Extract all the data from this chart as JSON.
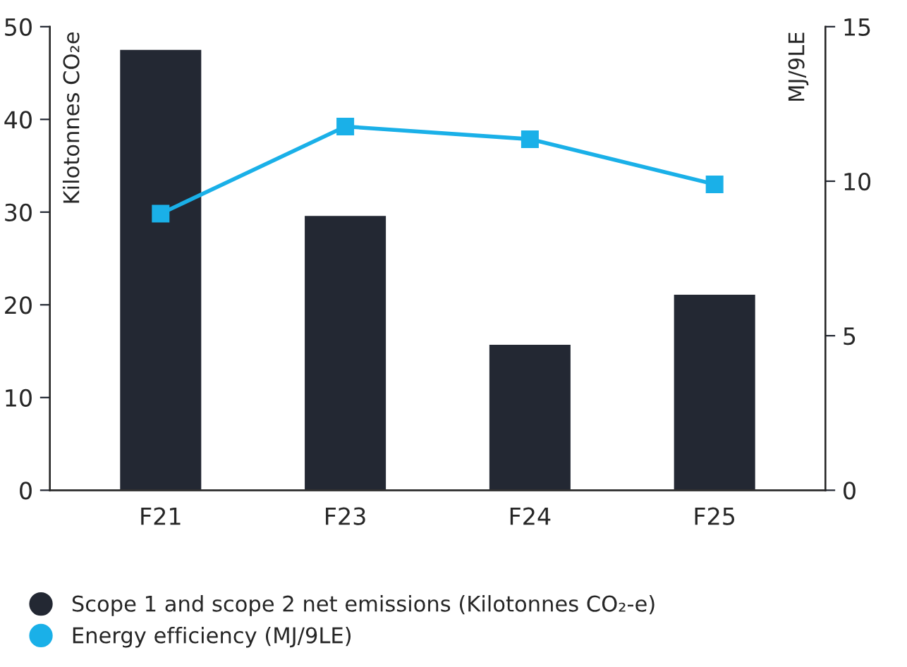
{
  "chart_data": {
    "type": "bar",
    "categories": [
      "F21",
      "F23",
      "F24",
      "F25"
    ],
    "ylabel": "Kilotonnes CO₂e",
    "y2label": "MJ/9LE",
    "ylim": [
      0,
      50
    ],
    "yticks": [
      0,
      10,
      20,
      30,
      40,
      50
    ],
    "y2lim": [
      0,
      15
    ],
    "y2ticks": [
      0,
      5,
      10,
      15
    ],
    "series": [
      {
        "name": "Scope 1 and scope 2 net emissions (Kilotonnes CO₂-e)",
        "color": "#232833",
        "values": [
          47.6,
          29.7,
          15.8,
          21.2
        ]
      },
      {
        "name": "Energy efficiency (MJ/9LE)",
        "color": "#1ab0e8",
        "type": "line",
        "axis": "y2",
        "marker": "square",
        "values": [
          8.95,
          11.77,
          11.36,
          9.9
        ]
      }
    ],
    "grid": false,
    "legend": "bottom"
  }
}
